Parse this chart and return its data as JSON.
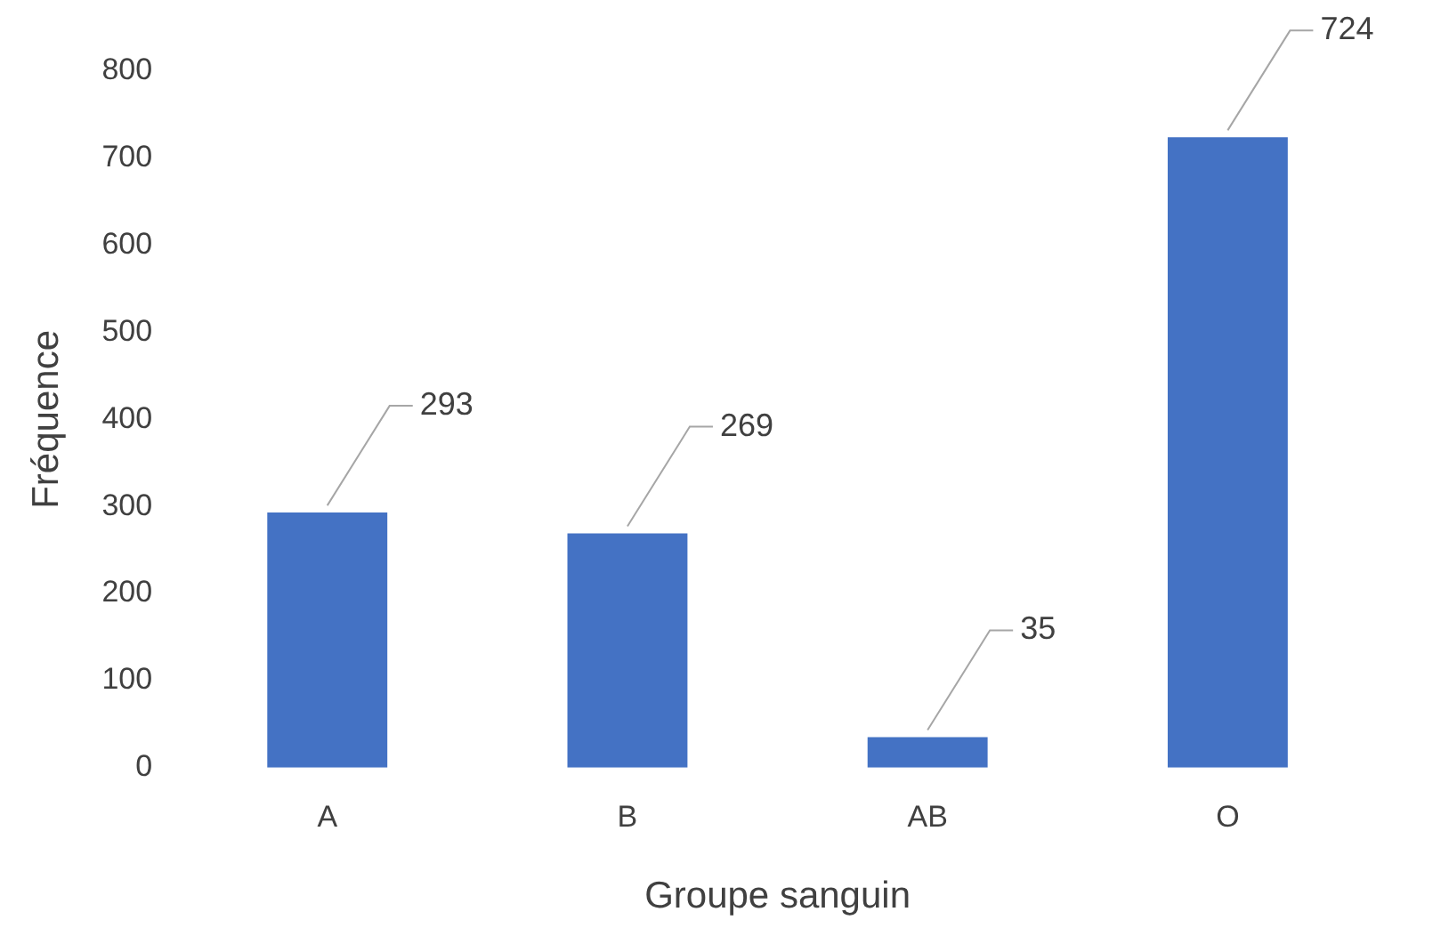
{
  "chart_data": {
    "type": "bar",
    "xlabel": "Groupe sanguin",
    "ylabel": "Fréquence",
    "categories": [
      "A",
      "B",
      "AB",
      "O"
    ],
    "values": [
      293,
      269,
      35,
      724
    ],
    "color": "#4472c4",
    "ylim": [
      0,
      800
    ],
    "yticks": [
      0,
      100,
      200,
      300,
      400,
      500,
      600,
      700,
      800
    ],
    "grid": false,
    "data_labels": true
  }
}
